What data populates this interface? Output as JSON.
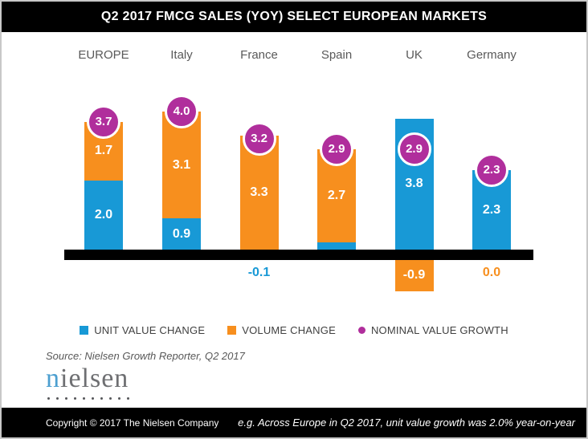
{
  "title": "Q2 2017 FMCG SALES (YOY) SELECT EUROPEAN MARKETS",
  "chart_data": {
    "type": "bar",
    "stacked": true,
    "title": "Q2 2017 FMCG SALES (YOY) SELECT EUROPEAN MARKETS",
    "categories": [
      "EUROPE",
      "Italy",
      "France",
      "Spain",
      "UK",
      "Germany"
    ],
    "series": [
      {
        "name": "UNIT VALUE CHANGE",
        "marker": "square",
        "color": "#1899D6",
        "values": [
          2.0,
          0.9,
          -0.1,
          0.2,
          3.8,
          2.3
        ]
      },
      {
        "name": "VOLUME CHANGE",
        "marker": "square",
        "color": "#F78F1E",
        "values": [
          1.7,
          3.1,
          3.3,
          2.7,
          -0.9,
          0.0
        ]
      },
      {
        "name": "NOMINAL VALUE GROWTH",
        "marker": "circle",
        "color": "#B02E9C",
        "type": "point",
        "values": [
          3.7,
          4.0,
          3.2,
          2.9,
          2.9,
          2.3
        ]
      }
    ],
    "value_label_decimals": 1,
    "xlabel": "",
    "ylabel": "",
    "axis": {
      "baseline": 0,
      "gridlines": false,
      "baseline_style": "thick-black-bar"
    },
    "legend_position": "bottom"
  },
  "source_note": "Source: Nielsen Growth Reporter, Q2 2017",
  "logo": {
    "first_letter": "n",
    "rest": "ielsen"
  },
  "footer": {
    "copyright": "Copyright © 2017 The Nielsen Company",
    "example_note": "e.g. Across Europe in Q2 2017, unit value growth was 2.0% year-on-year"
  },
  "colors": {
    "unit_value_blue": "#1899D6",
    "volume_orange": "#F78F1E",
    "nominal_magenta": "#B02E9C",
    "title_bg": "#000000",
    "category_text": "#595959",
    "legend_text": "#404040"
  }
}
